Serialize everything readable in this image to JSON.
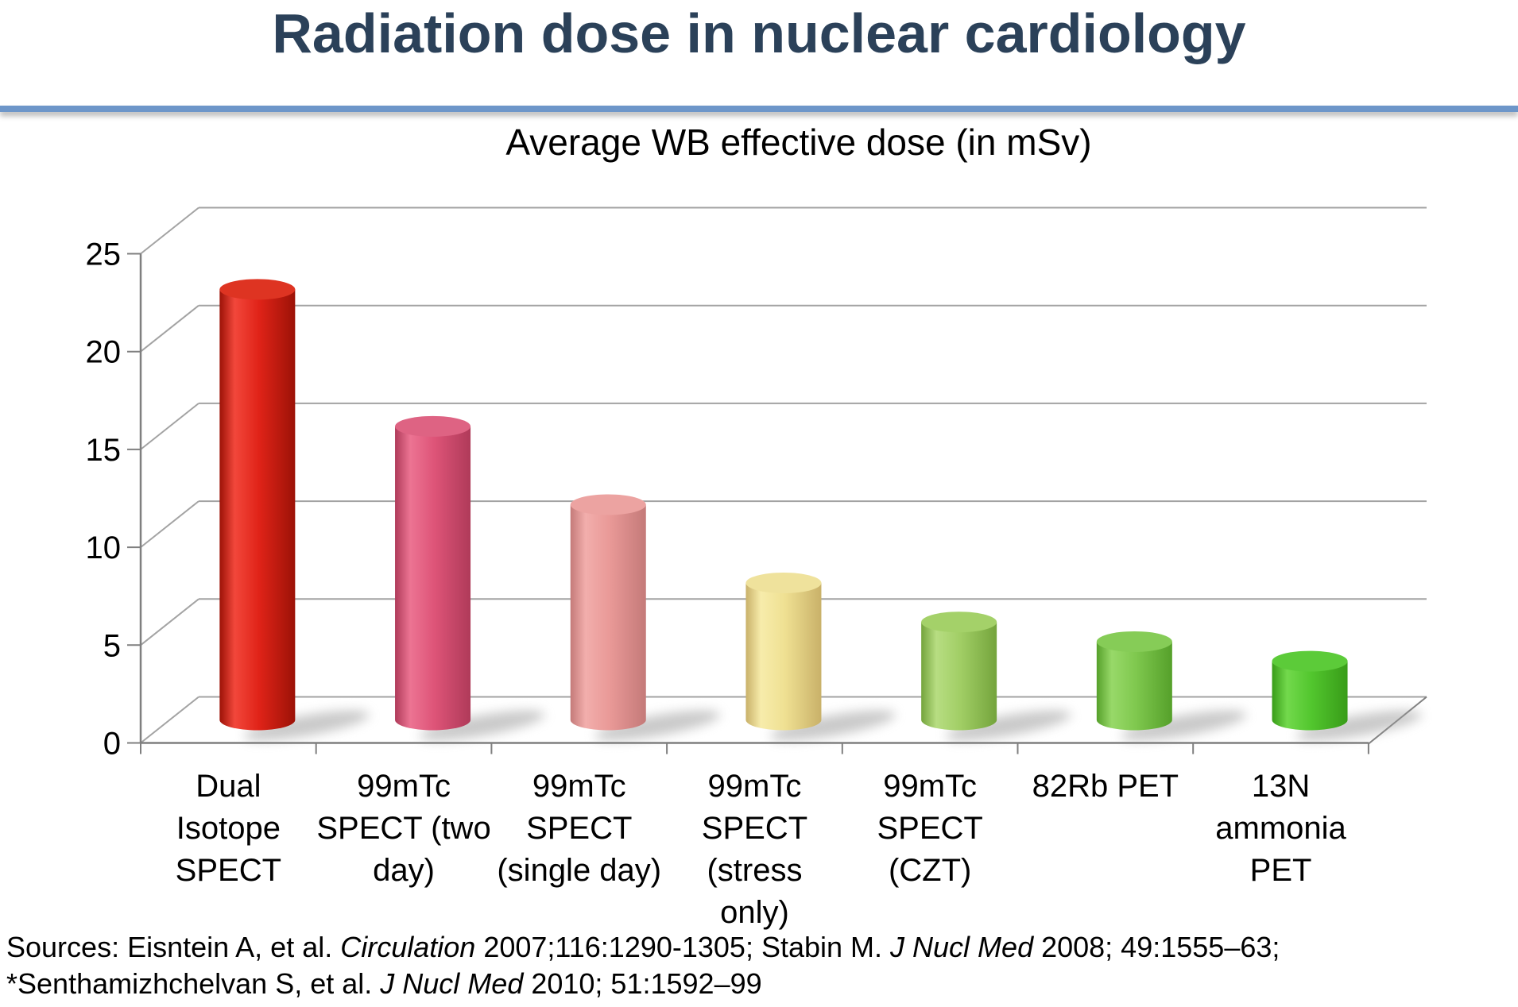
{
  "slide": {
    "title": "Radiation dose in nuclear cardiology",
    "title_color": "#2B4159",
    "accent_line_color": "#6D96C9",
    "background": "#FFFFFF"
  },
  "chart_data": {
    "type": "bar",
    "style": "3d-cylinder",
    "title": "Average WB effective dose (in mSv)",
    "unit": "mSv",
    "categories": [
      "Dual Isotope SPECT",
      "99mTc SPECT (two day)",
      "99mTc SPECT (single day)",
      "99mTc SPECT (stress only)",
      "99mTc SPECT (CZT)",
      "82Rb PET",
      "13N ammonia PET"
    ],
    "category_label_lines": [
      [
        "Dual",
        "Isotope",
        "SPECT"
      ],
      [
        "99mTc",
        "SPECT (two",
        "day)"
      ],
      [
        "99mTc",
        "SPECT",
        "(single day)"
      ],
      [
        "99mTc",
        "SPECT",
        "(stress",
        "only)"
      ],
      [
        "99mTc",
        "SPECT",
        "(CZT)"
      ],
      [
        "82Rb PET"
      ],
      [
        "13N",
        "ammonia",
        "PET"
      ]
    ],
    "values": [
      22,
      15,
      11,
      7,
      5,
      4,
      3
    ],
    "y_ticks": [
      0,
      5,
      10,
      15,
      20,
      25
    ],
    "ylim": [
      0,
      25
    ],
    "grid": true,
    "legend": false,
    "gridline_color": "#A3A3A3",
    "axis_color": "#7F7F7F",
    "tick_label_color": "#000000",
    "shadow_color": "#9E9E9E",
    "bar_colors": [
      {
        "dark": "#9C1207",
        "light": "#F2473B",
        "base": "#E02318",
        "top": "#DE3422"
      },
      {
        "dark": "#AF3A59",
        "light": "#EC7493",
        "base": "#DE5478",
        "top": "#DE6383"
      },
      {
        "dark": "#C47A79",
        "light": "#F2AEAC",
        "base": "#E99997",
        "top": "#ECA3A1"
      },
      {
        "dark": "#C9B169",
        "light": "#F7ECAB",
        "base": "#EFE092",
        "top": "#EFE29C"
      },
      {
        "dark": "#74A43C",
        "light": "#B7DD82",
        "base": "#A1CE65",
        "top": "#A4D169"
      },
      {
        "dark": "#55A02A",
        "light": "#98D969",
        "base": "#7FC84E",
        "top": "#86CC57"
      },
      {
        "dark": "#389C18",
        "light": "#72D94C",
        "base": "#52C62E",
        "top": "#5CCB39"
      }
    ]
  },
  "sources": {
    "line1": [
      {
        "text": "Sources: Eisntein A, et al. "
      },
      {
        "text": "Circulation",
        "italic": true
      },
      {
        "text": " 2007;116:1290-1305; Stabin M. "
      },
      {
        "text": "J Nucl Med",
        "italic": true
      },
      {
        "text": " 2008; 49:1555–63;"
      }
    ],
    "line2": [
      {
        "text": "*Senthamizhchelvan S, et al. "
      },
      {
        "text": "J Nucl Med",
        "italic": true
      },
      {
        "text": " 2010; 51:1592–99"
      }
    ]
  }
}
